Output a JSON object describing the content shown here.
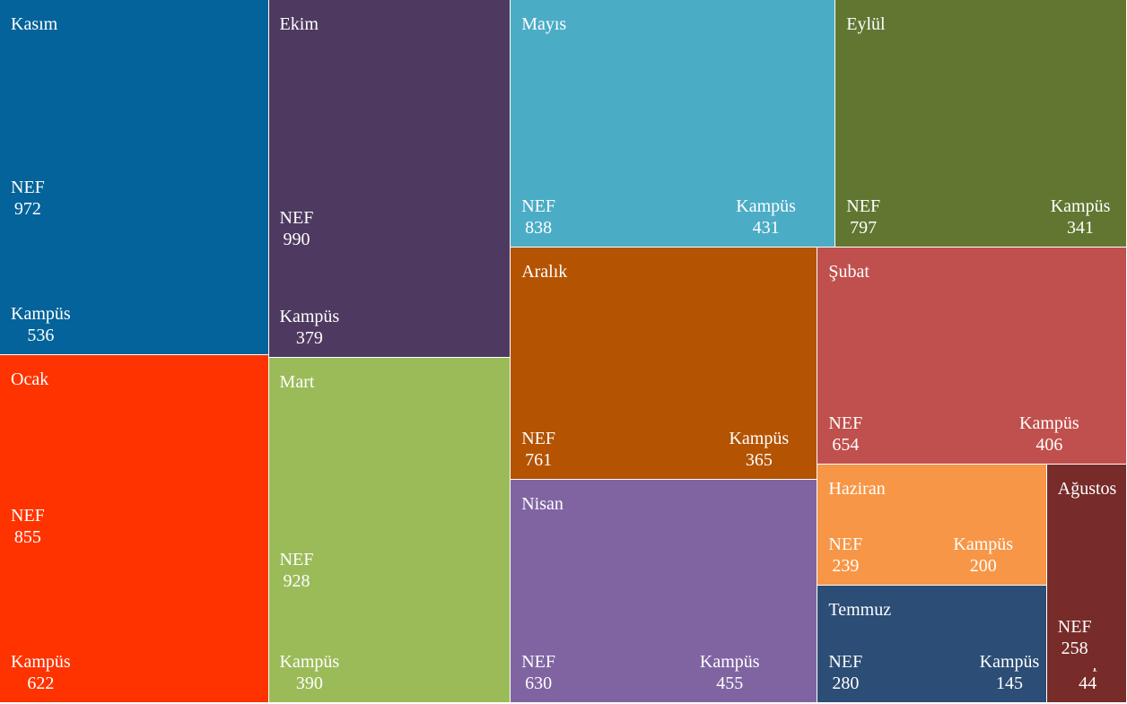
{
  "chart_data": {
    "type": "treemap",
    "groups": [
      {
        "name": "Kasım",
        "color": "#03639a",
        "children": [
          {
            "name": "NEF",
            "value": 972
          },
          {
            "name": "Kampüs",
            "value": 536
          }
        ]
      },
      {
        "name": "Ocak",
        "color": "#ff3300",
        "children": [
          {
            "name": "NEF",
            "value": 855
          },
          {
            "name": "Kampüs",
            "value": 622
          }
        ]
      },
      {
        "name": "Ekim",
        "color": "#4e3a60",
        "children": [
          {
            "name": "NEF",
            "value": 990
          },
          {
            "name": "Kampüs",
            "value": 379
          }
        ]
      },
      {
        "name": "Mart",
        "color": "#9bbb59",
        "children": [
          {
            "name": "NEF",
            "value": 928
          },
          {
            "name": "Kampüs",
            "value": 390
          }
        ]
      },
      {
        "name": "Mayıs",
        "color": "#4bacc6",
        "children": [
          {
            "name": "NEF",
            "value": 838
          },
          {
            "name": "Kampüs",
            "value": 431
          }
        ]
      },
      {
        "name": "Eylül",
        "color": "#617731",
        "children": [
          {
            "name": "NEF",
            "value": 797
          },
          {
            "name": "Kampüs",
            "value": 341
          }
        ]
      },
      {
        "name": "Aralık",
        "color": "#b45302",
        "children": [
          {
            "name": "NEF",
            "value": 761
          },
          {
            "name": "Kampüs",
            "value": 365
          }
        ]
      },
      {
        "name": "Nisan",
        "color": "#8064a2",
        "children": [
          {
            "name": "NEF",
            "value": 630
          },
          {
            "name": "Kampüs",
            "value": 455
          }
        ]
      },
      {
        "name": "Şubat",
        "color": "#c0504d",
        "children": [
          {
            "name": "NEF",
            "value": 654
          },
          {
            "name": "Kampüs",
            "value": 406
          }
        ]
      },
      {
        "name": "Haziran",
        "color": "#f79646",
        "children": [
          {
            "name": "NEF",
            "value": 239
          },
          {
            "name": "Kampüs",
            "value": 200
          }
        ]
      },
      {
        "name": "Temmuz",
        "color": "#2c4d75",
        "children": [
          {
            "name": "NEF",
            "value": 280
          },
          {
            "name": "Kampüs",
            "value": 145
          }
        ]
      },
      {
        "name": "Ağustos",
        "color": "#772c2a",
        "children": [
          {
            "name": "NEF",
            "value": 258
          },
          {
            "name": "Kampüs",
            "value": 44
          }
        ]
      }
    ]
  }
}
